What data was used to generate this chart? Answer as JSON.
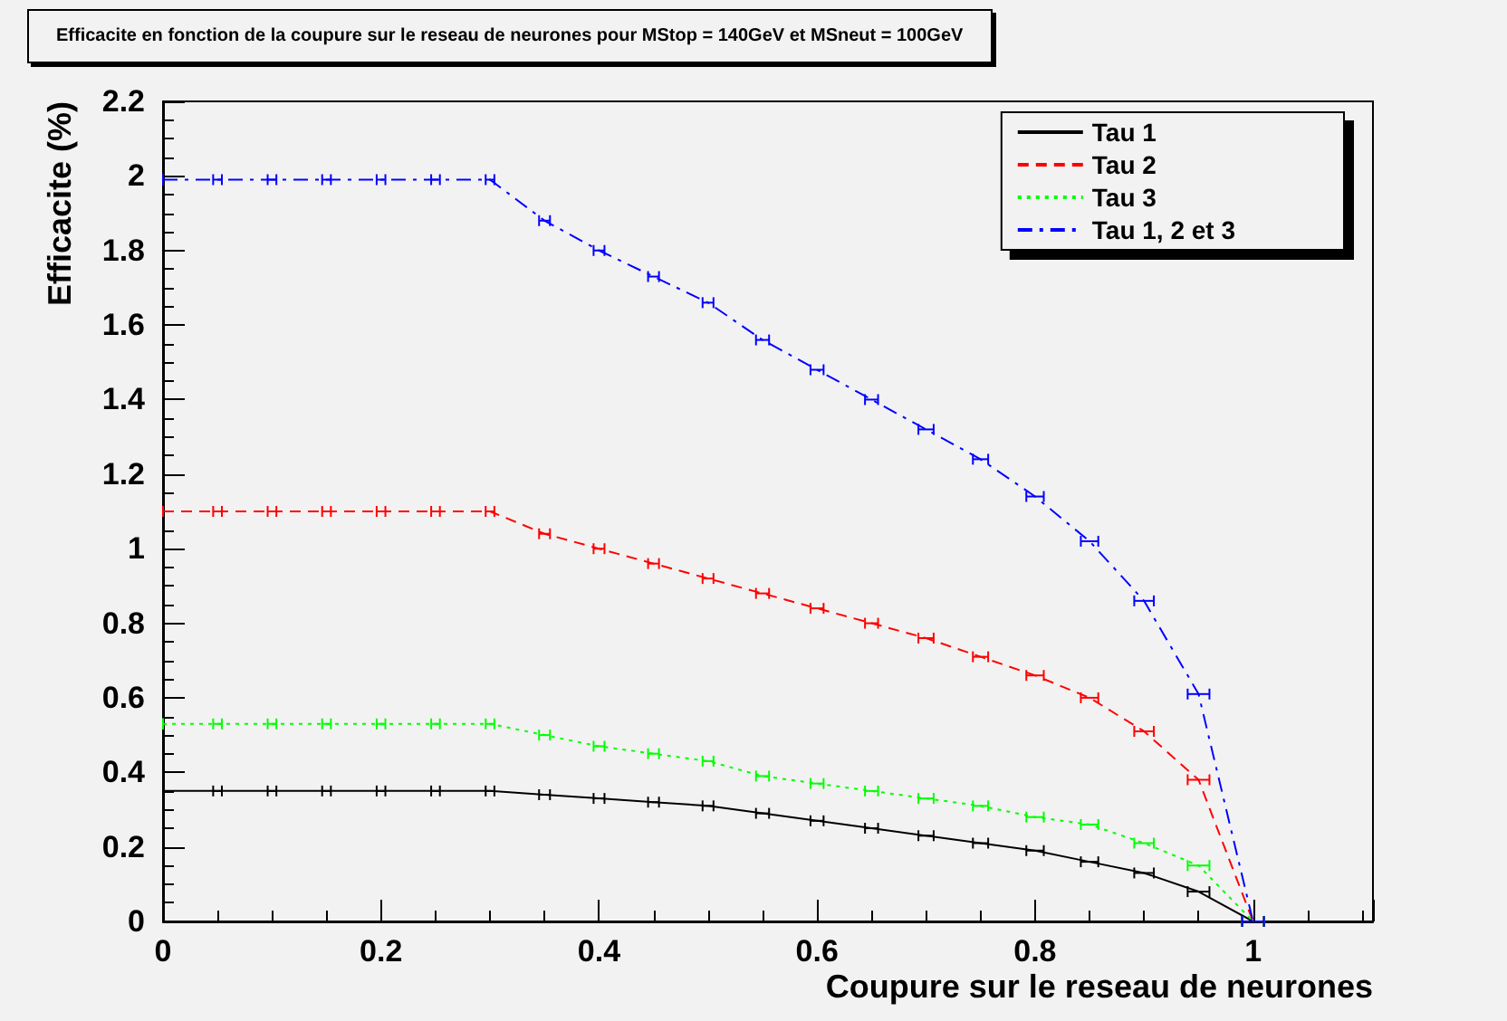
{
  "chart_data": {
    "type": "line",
    "title": "Efficacite en fonction de la coupure sur le reseau de neurones pour MStop = 140GeV et MSneut = 100GeV",
    "xlabel": "Coupure sur le reseau de neurones",
    "ylabel": "Efficacite (%)",
    "x": [
      0,
      0.05,
      0.1,
      0.15,
      0.2,
      0.25,
      0.3,
      0.35,
      0.4,
      0.45,
      0.5,
      0.55,
      0.6,
      0.65,
      0.7,
      0.75,
      0.8,
      0.85,
      0.9,
      0.95,
      1
    ],
    "series": [
      {
        "name": "Tau 1",
        "color": "#000000",
        "line_style": "solid",
        "values": [
          0.35,
          0.35,
          0.35,
          0.35,
          0.35,
          0.35,
          0.35,
          0.34,
          0.33,
          0.32,
          0.31,
          0.29,
          0.27,
          0.25,
          0.23,
          0.21,
          0.19,
          0.16,
          0.13,
          0.08,
          0
        ],
        "xerrors": [
          null,
          0.004,
          0.004,
          0.004,
          0.004,
          0.004,
          0.004,
          0.005,
          0.005,
          0.005,
          0.005,
          0.006,
          0.006,
          0.006,
          0.007,
          0.007,
          0.008,
          0.008,
          0.009,
          0.01,
          0.01
        ]
      },
      {
        "name": "Tau 2",
        "color": "#ff0000",
        "line_style": "dashed",
        "values": [
          1.1,
          1.1,
          1.1,
          1.1,
          1.1,
          1.1,
          1.1,
          1.04,
          1.0,
          0.96,
          0.92,
          0.88,
          0.84,
          0.8,
          0.76,
          0.71,
          0.66,
          0.6,
          0.51,
          0.38,
          0
        ],
        "xerrors": [
          null,
          0.004,
          0.004,
          0.004,
          0.004,
          0.004,
          0.004,
          0.005,
          0.005,
          0.005,
          0.005,
          0.006,
          0.006,
          0.006,
          0.007,
          0.007,
          0.008,
          0.008,
          0.009,
          0.01,
          0.01
        ]
      },
      {
        "name": "Tau 3",
        "color": "#00ff00",
        "line_style": "dotted",
        "values": [
          0.53,
          0.53,
          0.53,
          0.53,
          0.53,
          0.53,
          0.53,
          0.5,
          0.47,
          0.45,
          0.43,
          0.39,
          0.37,
          0.35,
          0.33,
          0.31,
          0.28,
          0.26,
          0.21,
          0.15,
          0
        ],
        "xerrors": [
          null,
          0.004,
          0.004,
          0.004,
          0.004,
          0.004,
          0.004,
          0.005,
          0.005,
          0.005,
          0.005,
          0.006,
          0.006,
          0.006,
          0.007,
          0.007,
          0.008,
          0.008,
          0.009,
          0.01,
          0.01
        ]
      },
      {
        "name": "Tau 1, 2 et 3",
        "color": "#0000ff",
        "line_style": "dashdot",
        "values": [
          1.99,
          1.99,
          1.99,
          1.99,
          1.99,
          1.99,
          1.99,
          1.88,
          1.8,
          1.73,
          1.66,
          1.56,
          1.48,
          1.4,
          1.32,
          1.24,
          1.14,
          1.02,
          0.86,
          0.61,
          0
        ],
        "xerrors": [
          null,
          0.004,
          0.004,
          0.004,
          0.004,
          0.004,
          0.004,
          0.005,
          0.005,
          0.005,
          0.005,
          0.006,
          0.006,
          0.006,
          0.007,
          0.007,
          0.008,
          0.008,
          0.009,
          0.01,
          0.01
        ]
      }
    ],
    "xlim": [
      0,
      1.11
    ],
    "xticks": [
      0,
      0.2,
      0.4,
      0.6,
      0.8,
      1
    ],
    "ylim": [
      0,
      2.2
    ],
    "yticks": [
      0,
      0.2,
      0.4,
      0.6,
      0.8,
      1,
      1.2,
      1.4,
      1.6,
      1.8,
      2,
      2.2
    ],
    "marker": "none",
    "grid": false,
    "legend": "top right"
  }
}
